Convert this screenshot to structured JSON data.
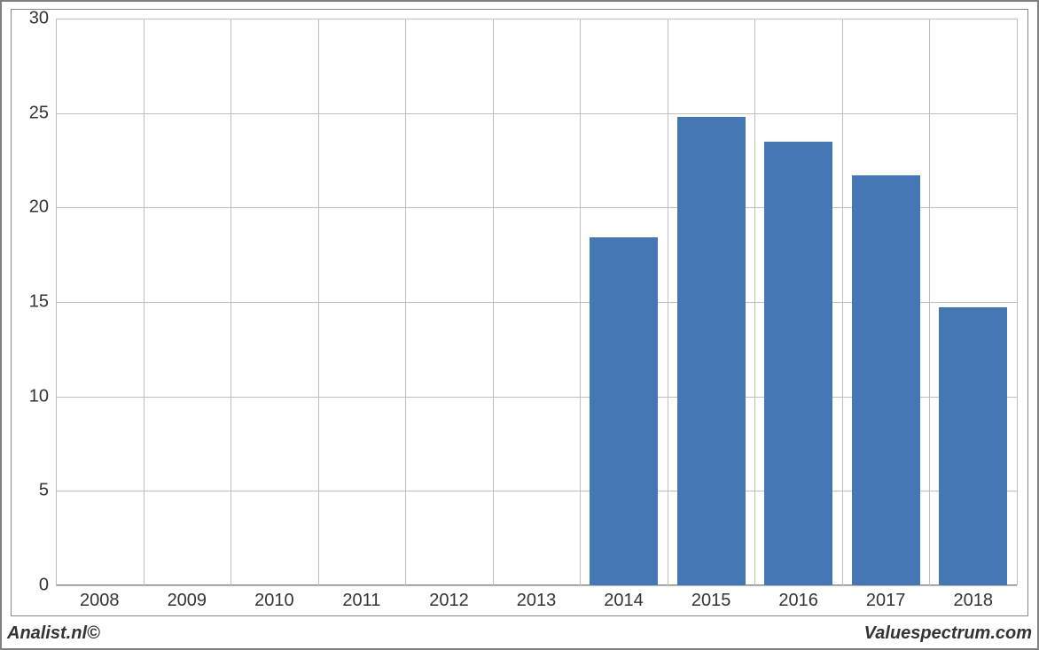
{
  "chart": {
    "type": "bar",
    "categories": [
      "2008",
      "2009",
      "2010",
      "2011",
      "2012",
      "2013",
      "2014",
      "2015",
      "2016",
      "2017",
      "2018"
    ],
    "values": [
      0,
      0,
      0,
      0,
      0,
      0,
      18.4,
      24.8,
      23.5,
      21.7,
      14.7
    ],
    "bar_color": "#4577b4",
    "ylim": [
      0,
      30
    ],
    "ytick_step": 5,
    "yticks": [
      "0",
      "5",
      "10",
      "15",
      "20",
      "25",
      "30"
    ],
    "grid_color": "#bfbfbf",
    "axis_color": "#888888",
    "background_color": "#ffffff",
    "label_color": "#333333",
    "label_fontsize": 20,
    "bar_width_ratio": 0.78
  },
  "footer": {
    "left": "Analist.nl©",
    "right": "Valuespectrum.com",
    "fontsize": 20,
    "bold": true,
    "italic": true,
    "color": "#333333"
  },
  "frame": {
    "border_color": "#808080",
    "inner_border_color": "#888888"
  }
}
